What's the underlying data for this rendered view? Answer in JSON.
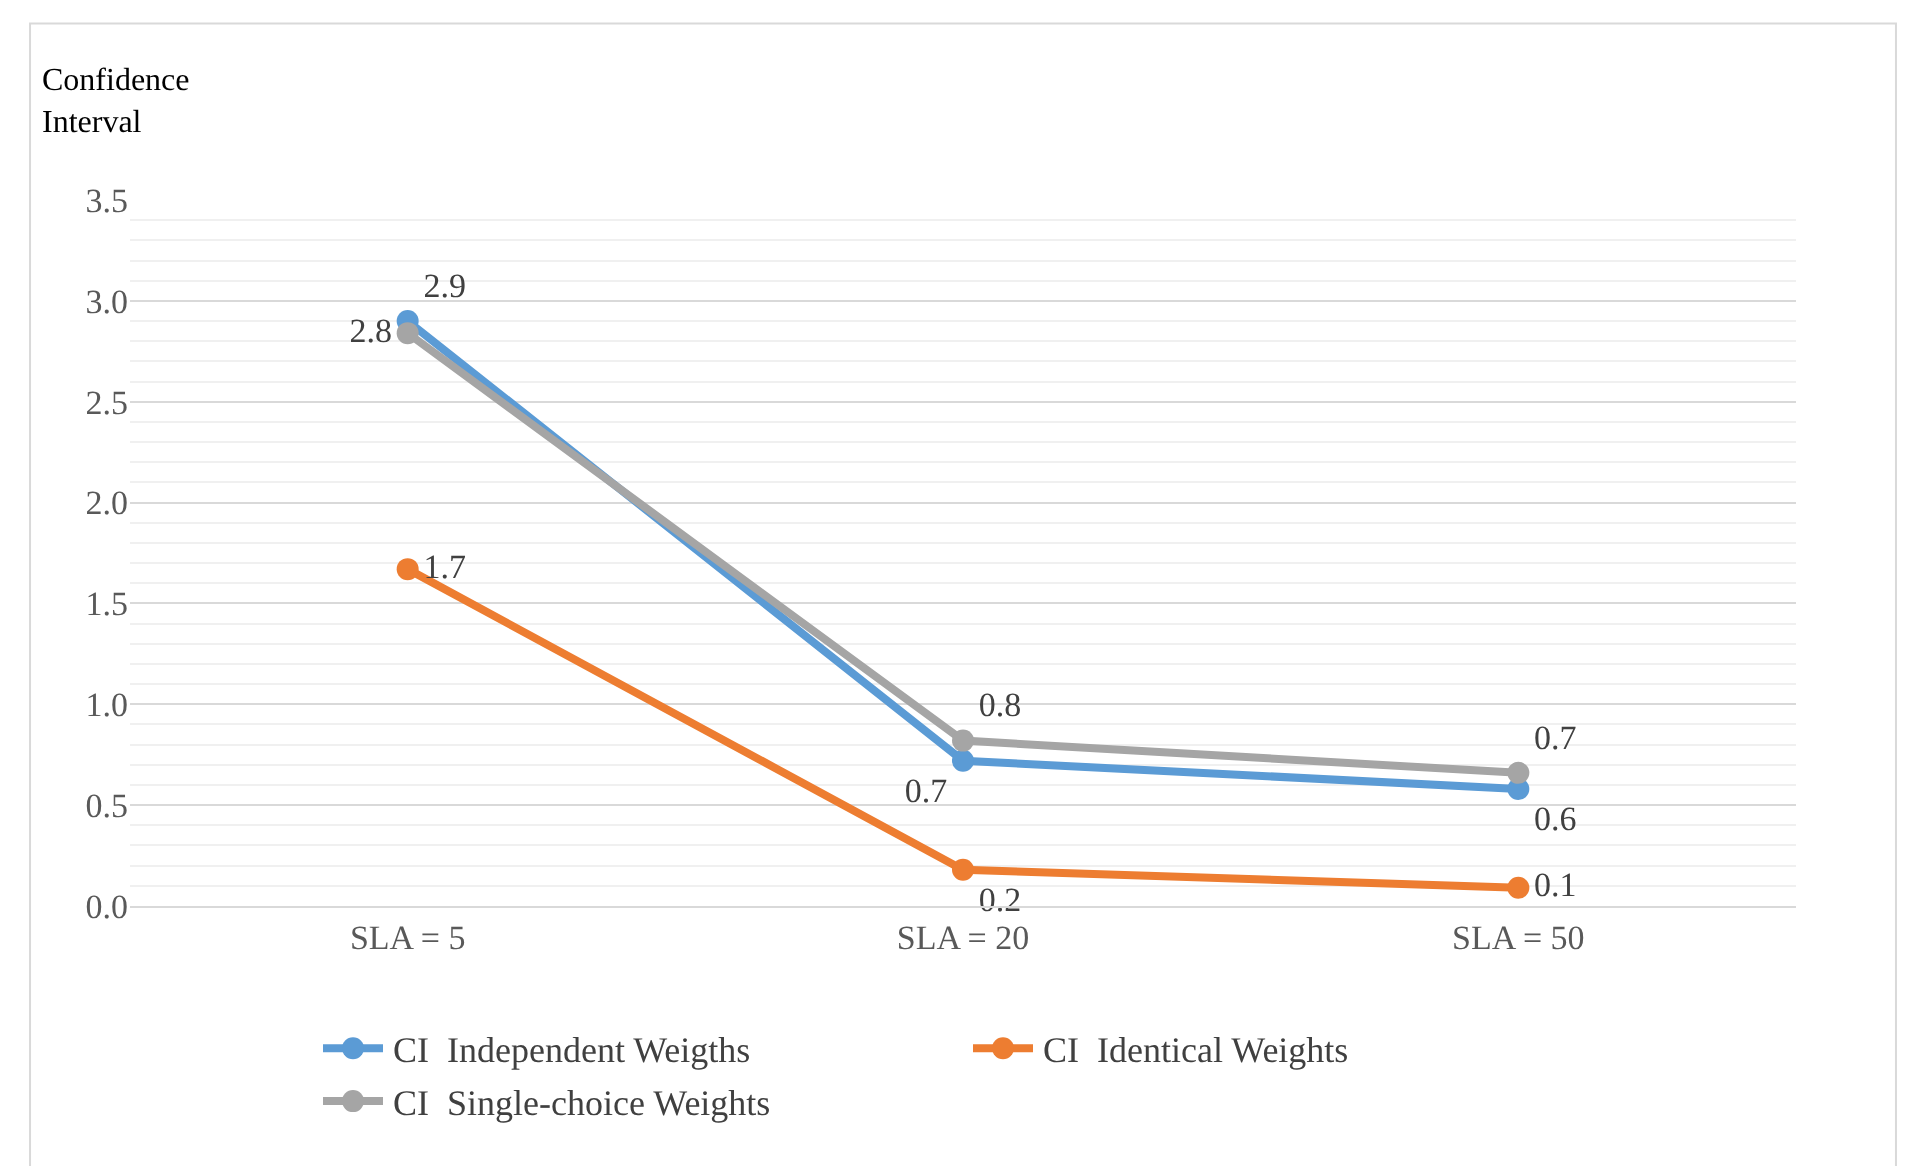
{
  "chart_data": {
    "type": "line",
    "ylabel": "Confidence\nInterval",
    "categories": [
      "SLA = 5",
      "SLA = 20",
      "SLA = 50"
    ],
    "series": [
      {
        "name": "CI  Independent Weigths",
        "color": "#5b9bd5",
        "values": [
          2.9,
          0.72,
          0.58
        ],
        "value_labels": [
          "2.9",
          "0.7",
          "0.6"
        ]
      },
      {
        "name": "CI  Identical Weights",
        "color": "#ed7d31",
        "values": [
          1.67,
          0.18,
          0.09
        ],
        "value_labels": [
          "1.7",
          "0.2",
          "0.1"
        ]
      },
      {
        "name": "CI  Single-choice Weights",
        "color": "#a5a5a5",
        "values": [
          2.84,
          0.82,
          0.66
        ],
        "value_labels": [
          "2.8",
          "0.8",
          "0.7"
        ]
      }
    ],
    "ylim": [
      0,
      3.5
    ],
    "yticks": [
      {
        "value": 0,
        "label": "0.0"
      },
      {
        "value": 0.5,
        "label": "0.5"
      },
      {
        "value": 1,
        "label": "1.0"
      },
      {
        "value": 1.5,
        "label": "1.5"
      },
      {
        "value": 2,
        "label": "2.0"
      },
      {
        "value": 2.5,
        "label": "2.5"
      },
      {
        "value": 3,
        "label": "3.0"
      },
      {
        "value": 3.5,
        "label": "3.5"
      }
    ],
    "grid": "y",
    "legend": "bottom",
    "marker": "circle",
    "line_style": "solid"
  }
}
